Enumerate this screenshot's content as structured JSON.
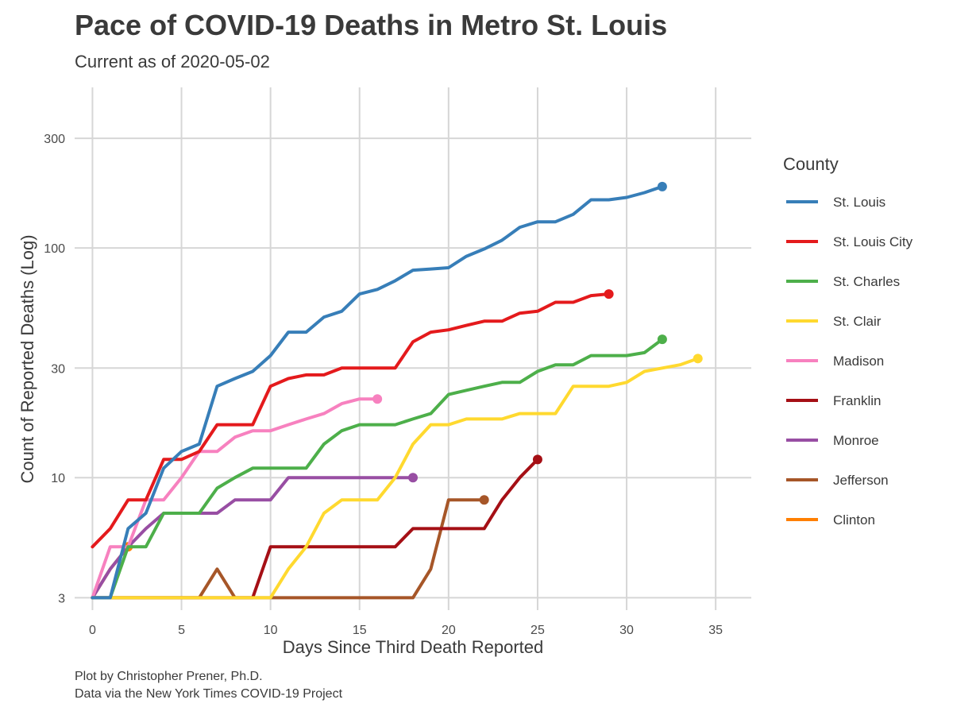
{
  "chart_data": {
    "type": "line",
    "title": "Pace of COVID-19 Deaths in Metro St. Louis",
    "subtitle": "Current as of 2020-05-02",
    "xlabel": "Days Since Third Death Reported",
    "ylabel": "Count of Reported Deaths (Log)",
    "x_scale": "linear",
    "y_scale": "log",
    "xlim": [
      -1,
      37
    ],
    "ylim": [
      2.65,
      500
    ],
    "x_ticks": [
      0,
      5,
      10,
      15,
      20,
      25,
      30,
      35
    ],
    "y_ticks": [
      3,
      10,
      30,
      100,
      300
    ],
    "grid": true,
    "legend_title": "County",
    "legend_position": "right",
    "caption": [
      "Plot by Christopher Prener, Ph.D.",
      "Data via the New York Times COVID-19 Project"
    ],
    "series": [
      {
        "name": "St. Louis",
        "color": "#377EB8",
        "x": [
          0,
          1,
          2,
          3,
          4,
          5,
          6,
          7,
          8,
          9,
          10,
          11,
          12,
          13,
          14,
          15,
          16,
          17,
          18,
          19,
          20,
          21,
          22,
          23,
          24,
          25,
          26,
          27,
          28,
          29,
          30,
          31,
          32
        ],
        "y": [
          3,
          3,
          6,
          7,
          11,
          13,
          14,
          25,
          27,
          29,
          34,
          43,
          43,
          50,
          53,
          63,
          66,
          72,
          80,
          81,
          82,
          92,
          99,
          108,
          123,
          130,
          130,
          140,
          162,
          162,
          166,
          174,
          185
        ]
      },
      {
        "name": "St. Louis City",
        "color": "#E41A1C",
        "x": [
          0,
          1,
          2,
          3,
          4,
          5,
          6,
          7,
          8,
          9,
          10,
          11,
          12,
          13,
          14,
          15,
          16,
          17,
          18,
          19,
          20,
          21,
          22,
          23,
          24,
          25,
          26,
          27,
          28,
          29
        ],
        "y": [
          5,
          6,
          8,
          8,
          12,
          12,
          13,
          17,
          17,
          17,
          25,
          27,
          28,
          28,
          30,
          30,
          30,
          30,
          39,
          43,
          44,
          46,
          48,
          48,
          52,
          53,
          58,
          58,
          62,
          63
        ]
      },
      {
        "name": "St. Charles",
        "color": "#4DAF4A",
        "x": [
          0,
          1,
          2,
          3,
          4,
          5,
          6,
          7,
          8,
          9,
          10,
          11,
          12,
          13,
          14,
          15,
          16,
          17,
          18,
          19,
          20,
          21,
          22,
          23,
          24,
          25,
          26,
          27,
          28,
          29,
          30,
          31,
          32
        ],
        "y": [
          3,
          3,
          5,
          5,
          7,
          7,
          7,
          9,
          10,
          11,
          11,
          11,
          11,
          14,
          16,
          17,
          17,
          17,
          18,
          19,
          23,
          24,
          25,
          26,
          26,
          29,
          31,
          31,
          34,
          34,
          34,
          35,
          40
        ]
      },
      {
        "name": "St. Clair",
        "color": "#FFD92F",
        "x": [
          0,
          1,
          2,
          3,
          4,
          5,
          6,
          7,
          8,
          9,
          10,
          11,
          12,
          13,
          14,
          15,
          16,
          17,
          18,
          19,
          20,
          21,
          22,
          23,
          24,
          25,
          26,
          27,
          28,
          29,
          30,
          31,
          32,
          33,
          34
        ],
        "y": [
          3,
          3,
          3,
          3,
          3,
          3,
          3,
          3,
          3,
          3,
          3,
          4,
          5,
          7,
          8,
          8,
          8,
          10,
          14,
          17,
          17,
          18,
          18,
          18,
          19,
          19,
          19,
          25,
          25,
          25,
          26,
          29,
          30,
          31,
          33
        ]
      },
      {
        "name": "Madison",
        "color": "#F781BF",
        "x": [
          0,
          1,
          2,
          3,
          4,
          5,
          6,
          7,
          8,
          9,
          10,
          11,
          12,
          13,
          14,
          15,
          16
        ],
        "y": [
          3,
          5,
          5,
          8,
          8,
          10,
          13,
          13,
          15,
          16,
          16,
          17,
          18,
          19,
          21,
          22,
          22
        ]
      },
      {
        "name": "Franklin",
        "color": "#A50F15",
        "x": [
          0,
          1,
          2,
          3,
          4,
          5,
          6,
          7,
          8,
          9,
          10,
          11,
          12,
          13,
          14,
          15,
          16,
          17,
          18,
          19,
          20,
          21,
          22,
          23,
          24,
          25
        ],
        "y": [
          3,
          3,
          3,
          3,
          3,
          3,
          3,
          3,
          3,
          3,
          5,
          5,
          5,
          5,
          5,
          5,
          5,
          5,
          6,
          6,
          6,
          6,
          6,
          8,
          10,
          12
        ]
      },
      {
        "name": "Monroe",
        "color": "#984EA3",
        "x": [
          0,
          1,
          2,
          3,
          4,
          5,
          6,
          7,
          8,
          9,
          10,
          11,
          12,
          13,
          14,
          15,
          16,
          17,
          18
        ],
        "y": [
          3,
          4,
          5,
          6,
          7,
          7,
          7,
          7,
          8,
          8,
          8,
          10,
          10,
          10,
          10,
          10,
          10,
          10,
          10
        ]
      },
      {
        "name": "Jefferson",
        "color": "#A65628",
        "x": [
          0,
          1,
          2,
          3,
          4,
          5,
          6,
          7,
          8,
          9,
          10,
          11,
          12,
          13,
          14,
          15,
          16,
          17,
          18,
          19,
          20,
          21,
          22
        ],
        "y": [
          3,
          3,
          3,
          3,
          3,
          3,
          3,
          4,
          3,
          3,
          3,
          3,
          3,
          3,
          3,
          3,
          3,
          3,
          3,
          4,
          8,
          8,
          8
        ]
      },
      {
        "name": "Clinton",
        "color": "#FF7F00",
        "x": [
          0,
          1,
          2
        ],
        "y": [
          3,
          4,
          5
        ]
      }
    ]
  }
}
